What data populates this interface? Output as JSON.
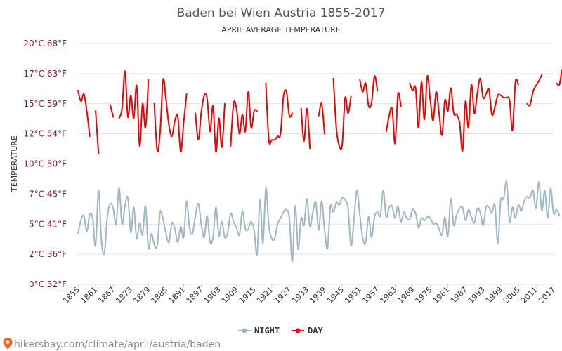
{
  "chart_data": {
    "type": "line",
    "title": "Baden bei Wien Austria 1855-2017",
    "subtitle": "APRIL AVERAGE TEMPERATURE",
    "ylabel": "TEMPERATURE",
    "ylim": [
      0,
      20
    ],
    "yticks": [
      {
        "value": 0,
        "label": "0°C 32°F"
      },
      {
        "value": 2.5,
        "label": "2°C 36°F"
      },
      {
        "value": 5,
        "label": "5°C 41°F"
      },
      {
        "value": 7.5,
        "label": "7°C 45°F"
      },
      {
        "value": 10,
        "label": "10°C 50°F"
      },
      {
        "value": 12.5,
        "label": "12°C 54°F"
      },
      {
        "value": 15,
        "label": "15°C 59°F"
      },
      {
        "value": 17.5,
        "label": "17°C 63°F"
      },
      {
        "value": 20,
        "label": "20°C 68°F"
      }
    ],
    "xlim": [
      1855,
      2017
    ],
    "xticks": [
      1855,
      1861,
      1867,
      1873,
      1879,
      1885,
      1891,
      1897,
      1903,
      1909,
      1915,
      1921,
      1927,
      1933,
      1939,
      1945,
      1951,
      1957,
      1963,
      1969,
      1975,
      1981,
      1987,
      1993,
      1999,
      2005,
      2011,
      2017
    ],
    "grid": true,
    "legend_position": "bottom-center",
    "series": [
      {
        "name": "NIGHT",
        "color": "#9fb8c3",
        "start_year": 1855,
        "values": [
          4.2,
          5.3,
          5.7,
          4.4,
          5.8,
          5.5,
          3.2,
          7.8,
          3.6,
          2.6,
          5.6,
          6.7,
          6.3,
          5.0,
          8.0,
          5.0,
          6.5,
          7.2,
          4.3,
          6.4,
          3.8,
          5.1,
          4.1,
          6.5,
          3.0,
          4.2,
          3.3,
          3.2,
          6.0,
          5.4,
          4.2,
          3.5,
          5.1,
          4.6,
          3.5,
          4.8,
          3.9,
          6.9,
          4.7,
          4.2,
          5.7,
          6.7,
          5.0,
          3.9,
          5.7,
          3.5,
          3.9,
          6.4,
          4.0,
          5.2,
          3.9,
          4.3,
          5.9,
          5.2,
          4.7,
          4.1,
          6.1,
          4.6,
          4.6,
          5.2,
          4.5,
          2.5,
          7.0,
          3.4,
          8.0,
          4.9,
          3.8,
          3.8,
          5.0,
          5.5,
          6.0,
          6.2,
          5.5,
          1.9,
          6.5,
          2.9,
          5.5,
          4.9,
          7.1,
          4.8,
          6.0,
          6.8,
          4.5,
          6.9,
          4.5,
          3.0,
          6.5,
          6.0,
          6.8,
          6.6,
          7.2,
          7.0,
          6.3,
          3.2,
          5.3,
          7.8,
          5.8,
          3.8,
          3.5,
          5.6,
          3.9,
          5.6,
          6.0,
          5.7,
          7.8,
          5.6,
          6.4,
          6.5,
          5.5,
          6.5,
          5.2,
          6.0,
          5.5,
          5.4,
          6.2,
          5.9,
          4.7,
          5.5,
          5.3,
          5.6,
          5.5,
          5.0,
          5.1,
          4.6,
          4.1,
          5.6,
          4.0,
          7.1,
          4.9,
          5.8,
          6.3,
          6.4,
          5.3,
          6.2,
          5.6,
          5.1,
          6.3,
          6.0,
          4.9,
          6.4,
          6.4,
          5.9,
          6.6,
          3.4,
          7.0,
          7.1,
          8.5,
          5.2,
          6.4,
          5.5,
          6.6,
          6.1,
          6.9,
          7.3,
          7.2,
          7.8,
          6.3,
          8.5,
          6.1,
          7.8,
          5.5,
          8.0,
          5.9,
          6.2,
          5.7
        ]
      },
      {
        "name": "DAY",
        "color": "#ee0000",
        "start_year": 1855,
        "values": [
          16.1,
          15.2,
          15.8,
          14.4,
          12.3,
          null,
          14.4,
          10.9,
          null,
          null,
          null,
          14.9,
          13.9,
          null,
          13.8,
          14.6,
          17.7,
          13.9,
          15.7,
          13.8,
          16.5,
          11.5,
          15.0,
          13.0,
          17.0,
          null,
          15.0,
          11.1,
          12.7,
          17.0,
          15.3,
          13.2,
          12.3,
          13.6,
          13.9,
          11.0,
          13.4,
          15.8,
          null,
          null,
          14.2,
          12.0,
          14.3,
          15.7,
          15.4,
          12.7,
          14.8,
          11.0,
          13.8,
          11.4,
          15.0,
          null,
          11.5,
          15.0,
          14.6,
          12.5,
          14.1,
          12.7,
          16.0,
          13.0,
          14.4,
          14.4,
          null,
          null,
          16.7,
          12.0,
          12.0,
          12.0,
          12.3,
          12.5,
          15.6,
          16.0,
          14.0,
          14.2,
          null,
          null,
          14.6,
          11.9,
          14.6,
          11.3,
          null,
          null,
          14.0,
          15.0,
          12.5,
          null,
          null,
          17.1,
          13.0,
          11.5,
          11.6,
          15.5,
          14.2,
          15.6,
          null,
          null,
          17.0,
          16.0,
          16.7,
          14.8,
          15.1,
          17.3,
          16.1,
          null,
          null,
          12.7,
          14.0,
          14.6,
          11.7,
          15.8,
          14.8,
          null,
          null,
          16.7,
          16.1,
          16.3,
          13.0,
          16.8,
          13.7,
          17.3,
          15.3,
          13.6,
          16.0,
          14.2,
          12.4,
          15.3,
          14.4,
          16.3,
          14.2,
          14.1,
          13.4,
          11.1,
          15.2,
          13.0,
          16.6,
          14.2,
          15.8,
          17.1,
          15.5,
          15.8,
          16.2,
          14.1,
          14.7,
          15.7,
          15.7,
          15.5,
          15.5,
          15.3,
          12.8,
          16.8,
          16.6,
          null,
          null,
          15.0,
          14.9,
          16.0,
          16.5,
          16.9,
          17.4,
          null,
          null,
          null,
          null,
          16.7,
          16.6,
          17.8,
          16.8,
          16.6,
          15.2
        ]
      }
    ]
  },
  "legend": {
    "night_label": "NIGHT",
    "day_label": "DAY"
  },
  "footer": {
    "credit_text": "hikersbay.com/climate/april/austria/baden"
  }
}
